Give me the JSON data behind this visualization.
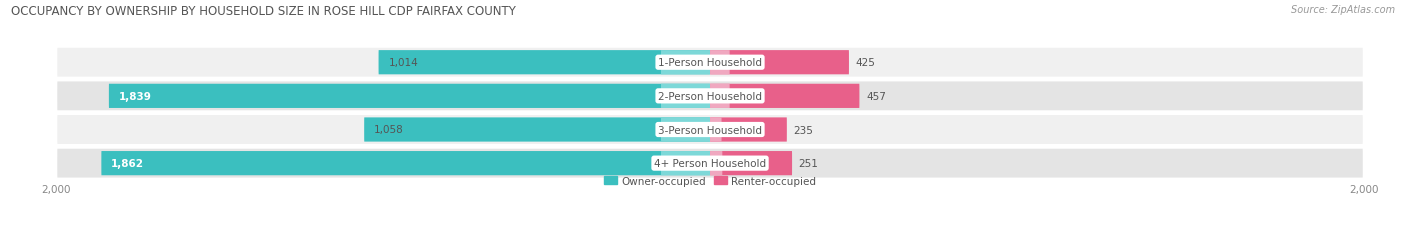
{
  "title": "OCCUPANCY BY OWNERSHIP BY HOUSEHOLD SIZE IN ROSE HILL CDP FAIRFAX COUNTY",
  "source": "Source: ZipAtlas.com",
  "categories": [
    "1-Person Household",
    "2-Person Household",
    "3-Person Household",
    "4+ Person Household"
  ],
  "owner_values": [
    1014,
    1839,
    1058,
    1862
  ],
  "renter_values": [
    425,
    457,
    235,
    251
  ],
  "max_scale": 2000,
  "owner_color": "#3BBFBF",
  "owner_color_light": "#7DD8D8",
  "renter_color": "#E8608A",
  "renter_color_light": "#F0A8C0",
  "row_bg_color_odd": "#F0F0F0",
  "row_bg_color_even": "#E4E4E4",
  "title_fontsize": 8.5,
  "label_fontsize": 7.5,
  "tick_fontsize": 7.5,
  "legend_fontsize": 7.5,
  "source_fontsize": 7.0,
  "value_fontsize": 7.5
}
